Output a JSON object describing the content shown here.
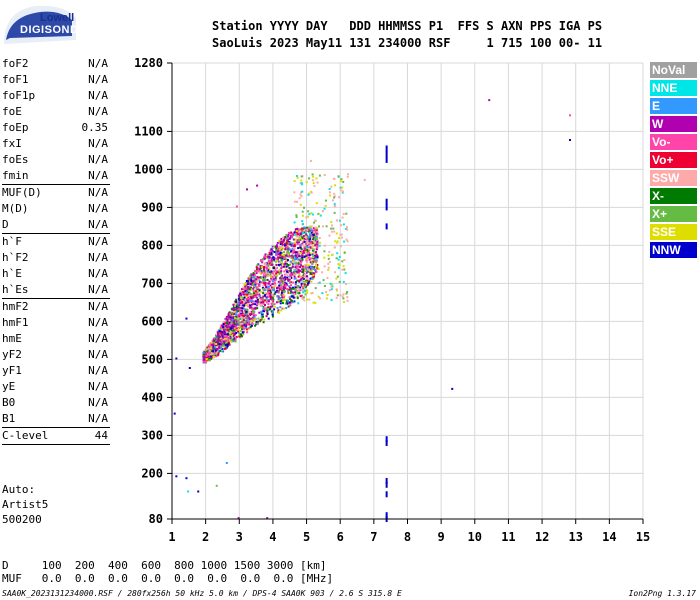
{
  "logo": {
    "line1": "Lowell",
    "line2": "DIGISONDE"
  },
  "header": {
    "line1": "Station YYYY DAY   DDD HHMMSS P1  FFS S AXN PPS IGA PS",
    "line2": "SaoLuis 2023 May11 131 234000 RSF     1 715 100 00- 11"
  },
  "params": [
    {
      "name": "foF2",
      "value": "N/A"
    },
    {
      "name": "foF1",
      "value": "N/A"
    },
    {
      "name": "foF1p",
      "value": "N/A"
    },
    {
      "name": "foE",
      "value": "N/A"
    },
    {
      "name": "foEp",
      "value": "0.35"
    },
    {
      "name": "fxI",
      "value": "N/A"
    },
    {
      "name": "foEs",
      "value": "N/A"
    },
    {
      "name": "fmin",
      "value": "N/A",
      "sep": true
    },
    {
      "name": "MUF(D)",
      "value": "N/A"
    },
    {
      "name": "M(D)",
      "value": "N/A"
    },
    {
      "name": "D",
      "value": "N/A",
      "sep": true
    },
    {
      "name": "h`F",
      "value": "N/A"
    },
    {
      "name": "h`F2",
      "value": "N/A"
    },
    {
      "name": "h`E",
      "value": "N/A"
    },
    {
      "name": "h`Es",
      "value": "N/A",
      "sep": true
    },
    {
      "name": "hmF2",
      "value": "N/A"
    },
    {
      "name": "hmF1",
      "value": "N/A"
    },
    {
      "name": "hmE",
      "value": "N/A"
    },
    {
      "name": "yF2",
      "value": "N/A"
    },
    {
      "name": "yF1",
      "value": "N/A"
    },
    {
      "name": "yE",
      "value": "N/A"
    },
    {
      "name": "B0",
      "value": "N/A"
    },
    {
      "name": "B1",
      "value": "N/A",
      "sep": true
    },
    {
      "name": "C-level",
      "value": "44",
      "sep": true
    }
  ],
  "auto": {
    "line1": "Auto:",
    "line2": "Artist5",
    "line3": "500200"
  },
  "legend": [
    {
      "label": "NoVal",
      "color": "#a0a0a0"
    },
    {
      "label": "NNE",
      "color": "#00e6e6"
    },
    {
      "label": "E",
      "color": "#3399ff"
    },
    {
      "label": "W",
      "color": "#b000b0"
    },
    {
      "label": "Vo-",
      "color": "#ff44aa"
    },
    {
      "label": "Vo+",
      "color": "#ee0033"
    },
    {
      "label": "SSW",
      "color": "#ffaaaa"
    },
    {
      "label": "X-",
      "color": "#007a00"
    },
    {
      "label": "X+",
      "color": "#66bb44"
    },
    {
      "label": "SSE",
      "color": "#dddd00"
    },
    {
      "label": "NNW",
      "color": "#0000cc"
    }
  ],
  "bottom": {
    "dist_line": "D     100  200  400  600  800 1000 1500 3000 [km]",
    "muf_line": "MUF   0.0  0.0  0.0  0.0  0.0  0.0  0.0  0.0 [MHz]"
  },
  "footer": {
    "left": "SAA0K_2023131234000.RSF / 280fx256h 50 kHz 5.0 km / DPS-4 SAA0K 903 / 2.6 S 315.8 E",
    "right": "Ion2Png 1.3.17"
  },
  "chart_data": {
    "type": "scatter",
    "xlim": [
      1,
      15
    ],
    "ylim": [
      80,
      1280
    ],
    "xticks": [
      1,
      2,
      3,
      4,
      5,
      6,
      7,
      8,
      9,
      10,
      11,
      12,
      13,
      14,
      15
    ],
    "yticks": [
      80,
      200,
      300,
      400,
      500,
      600,
      700,
      800,
      900,
      1000,
      1100,
      1280
    ],
    "grid": true,
    "trace": {
      "lower": [
        [
          1.9,
          490
        ],
        [
          2.2,
          505
        ],
        [
          2.6,
          530
        ],
        [
          3.0,
          560
        ],
        [
          3.4,
          585
        ],
        [
          3.8,
          605
        ],
        [
          4.2,
          625
        ],
        [
          4.6,
          650
        ],
        [
          4.9,
          675
        ],
        [
          5.1,
          700
        ],
        [
          5.3,
          730
        ]
      ],
      "upper": [
        [
          1.9,
          520
        ],
        [
          2.2,
          555
        ],
        [
          2.6,
          615
        ],
        [
          3.0,
          680
        ],
        [
          3.4,
          740
        ],
        [
          3.8,
          785
        ],
        [
          4.2,
          820
        ],
        [
          4.6,
          845
        ],
        [
          4.9,
          850
        ]
      ]
    },
    "scattered_points": [
      {
        "x": 3.2,
        "y": 950,
        "color": "#b000b0"
      },
      {
        "x": 3.5,
        "y": 960,
        "color": "#b000b0"
      },
      {
        "x": 2.9,
        "y": 905,
        "color": "#ff44aa"
      },
      {
        "x": 5.1,
        "y": 1025,
        "color": "#ffaaaa"
      },
      {
        "x": 6.7,
        "y": 975,
        "color": "#ffaaaa"
      },
      {
        "x": 6.2,
        "y": 990,
        "color": "#ffaaaa"
      },
      {
        "x": 1.4,
        "y": 610,
        "color": "#0000cc"
      },
      {
        "x": 1.5,
        "y": 480,
        "color": "#0000cc"
      },
      {
        "x": 1.1,
        "y": 505,
        "color": "#0000cc"
      },
      {
        "x": 1.05,
        "y": 360,
        "color": "#0000cc"
      },
      {
        "x": 1.1,
        "y": 195,
        "color": "#0000cc"
      },
      {
        "x": 1.4,
        "y": 190,
        "color": "#0000cc"
      },
      {
        "x": 1.45,
        "y": 155,
        "color": "#00e6e6"
      },
      {
        "x": 1.75,
        "y": 155,
        "color": "#0000cc"
      },
      {
        "x": 2.6,
        "y": 230,
        "color": "#3399ff"
      },
      {
        "x": 2.3,
        "y": 170,
        "color": "#66bb44"
      },
      {
        "x": 2.95,
        "y": 85,
        "color": "#b000b0"
      },
      {
        "x": 3.8,
        "y": 85,
        "color": "#b000b0"
      },
      {
        "x": 9.3,
        "y": 425,
        "color": "#0000cc"
      },
      {
        "x": 10.4,
        "y": 1185,
        "color": "#b000b0"
      },
      {
        "x": 12.8,
        "y": 1145,
        "color": "#ff44aa"
      },
      {
        "x": 12.8,
        "y": 1080,
        "color": "#0000cc"
      }
    ],
    "vertical_streaks": [
      {
        "x": 7.35,
        "ys": [
          1055,
          1040,
          1025,
          915,
          900,
          850,
          290,
          280,
          180,
          170,
          145,
          90,
          80
        ],
        "color": "#0000cc"
      }
    ]
  }
}
